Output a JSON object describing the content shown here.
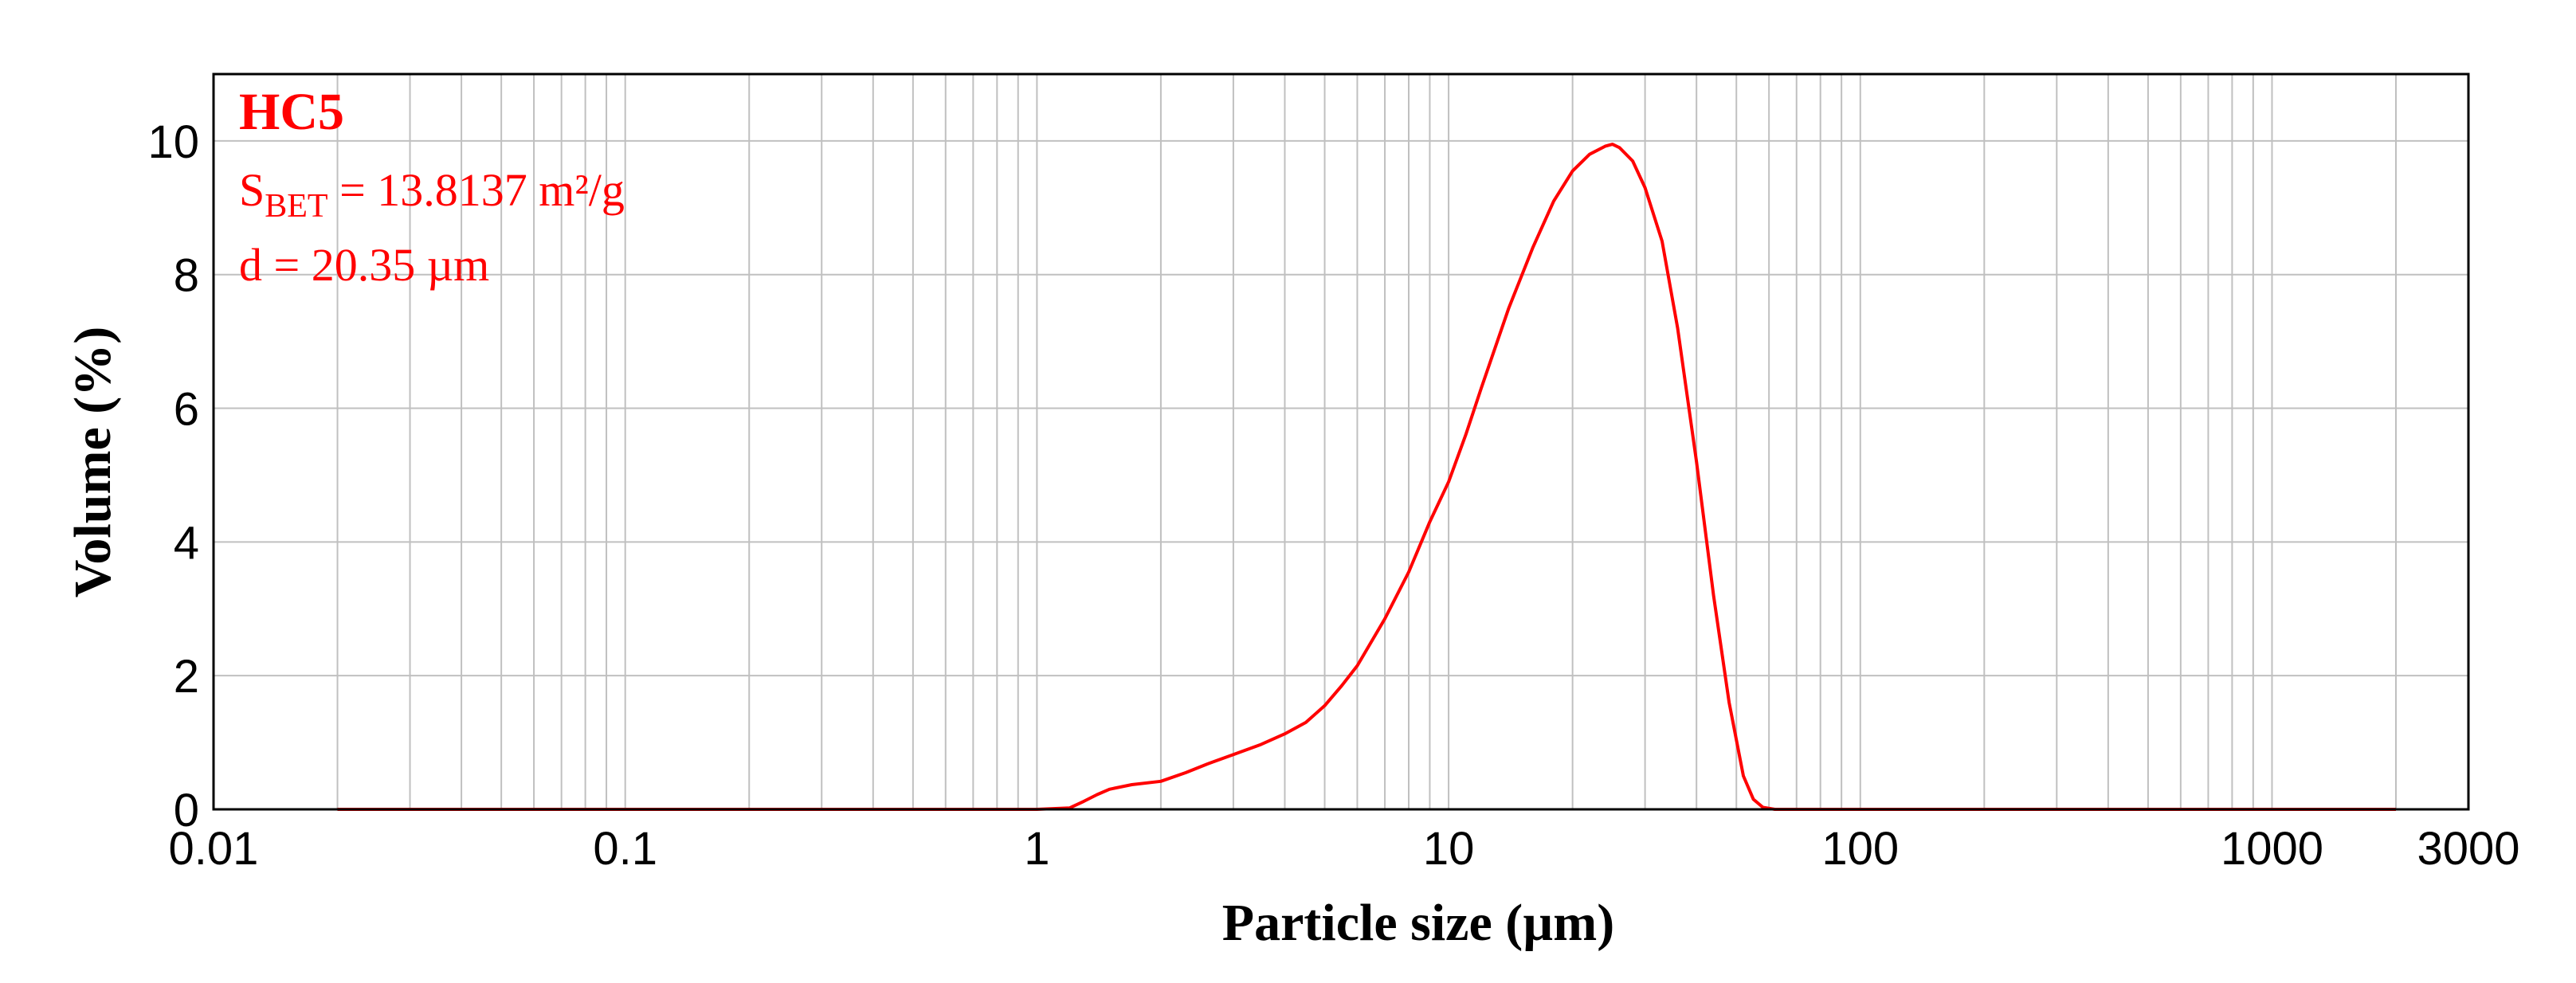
{
  "chart_data": {
    "type": "line",
    "xlabel": "Particle size (µm)",
    "ylabel": "Volume (%)",
    "x_scale": "log",
    "xlim": [
      0.01,
      3000
    ],
    "ylim": [
      0,
      11
    ],
    "grid": true,
    "x_ticks": [
      {
        "value": 0.01,
        "label": "0.01"
      },
      {
        "value": 0.1,
        "label": "0.1"
      },
      {
        "value": 1,
        "label": "1"
      },
      {
        "value": 10,
        "label": "10"
      },
      {
        "value": 100,
        "label": "100"
      },
      {
        "value": 1000,
        "label": "1000"
      },
      {
        "value": 3000,
        "label": "3000"
      }
    ],
    "y_ticks": [
      {
        "value": 0,
        "label": "0"
      },
      {
        "value": 2,
        "label": "2"
      },
      {
        "value": 4,
        "label": "4"
      },
      {
        "value": 6,
        "label": "6"
      },
      {
        "value": 8,
        "label": "8"
      },
      {
        "value": 10,
        "label": "10"
      }
    ],
    "annotations": {
      "sample": "HC5",
      "sbet_symbol": "S",
      "sbet_subscript": "BET",
      "sbet_value": " = 13.8137 m²/g",
      "diameter": "d = 20.35 µm"
    },
    "series": [
      {
        "color": "#ff0000",
        "x": [
          0.02,
          0.1,
          0.5,
          1.0,
          1.2,
          1.3,
          1.4,
          1.5,
          1.7,
          2.0,
          2.3,
          2.6,
          3.0,
          3.5,
          4.0,
          4.5,
          5.0,
          5.5,
          6.0,
          7.0,
          8.0,
          9.0,
          10.0,
          11.0,
          12.0,
          14.0,
          16.0,
          18.0,
          20.0,
          22.0,
          24.0,
          25.0,
          26.0,
          28.0,
          30.0,
          33.0,
          36.0,
          40.0,
          44.0,
          48.0,
          52.0,
          55.0,
          58.0,
          62.0,
          80.0,
          200.0,
          1000.0,
          2000.0
        ],
        "y": [
          0,
          0,
          0,
          0,
          0.02,
          0.12,
          0.22,
          0.3,
          0.37,
          0.42,
          0.55,
          0.68,
          0.82,
          0.97,
          1.13,
          1.3,
          1.55,
          1.85,
          2.15,
          2.85,
          3.55,
          4.3,
          4.9,
          5.6,
          6.3,
          7.5,
          8.4,
          9.1,
          9.55,
          9.8,
          9.92,
          9.95,
          9.9,
          9.7,
          9.3,
          8.5,
          7.2,
          5.2,
          3.2,
          1.6,
          0.5,
          0.15,
          0.03,
          0,
          0,
          0,
          0,
          0
        ]
      }
    ]
  }
}
